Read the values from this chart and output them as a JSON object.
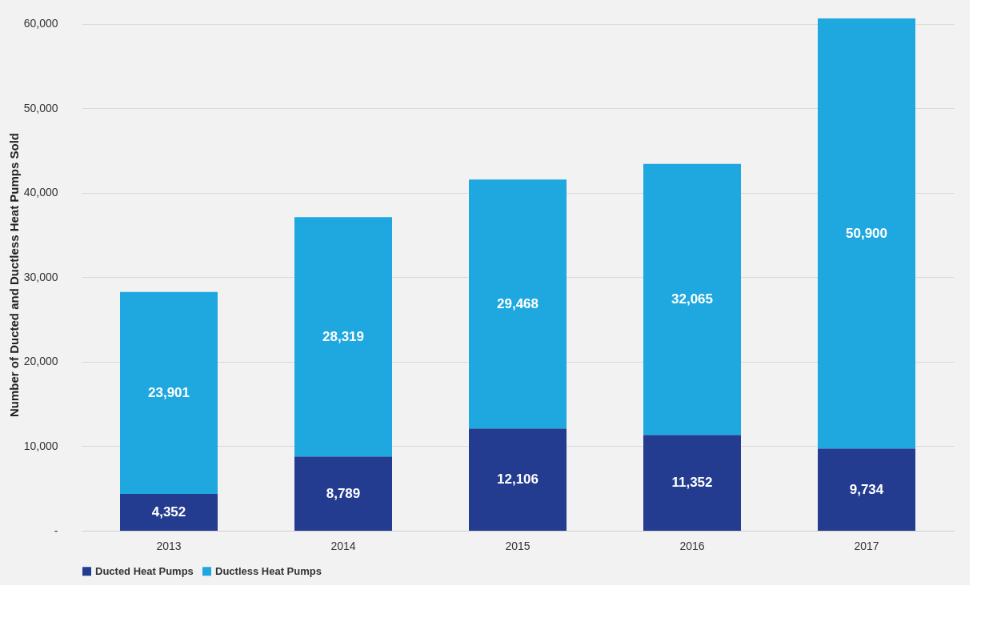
{
  "chart_data": {
    "type": "bar",
    "stacked": true,
    "ylabel": "Number of Ducted and Ductless Heat Pumps Sold",
    "categories": [
      "2013",
      "2014",
      "2015",
      "2016",
      "2017"
    ],
    "series": [
      {
        "name": "Ducted Heat Pumps",
        "color": "#233c8f",
        "values": [
          4352,
          8789,
          12106,
          11352,
          9734
        ],
        "value_labels": [
          "4,352",
          "8,789",
          "12,106",
          "11,352",
          "9,734"
        ]
      },
      {
        "name": "Ductless Heat Pumps",
        "color": "#1fa8e0",
        "values": [
          23901,
          28319,
          29468,
          32065,
          50900
        ],
        "value_labels": [
          "23,901",
          "28,319",
          "29,468",
          "32,065",
          "50,900"
        ]
      }
    ],
    "ylim": [
      0,
      60634
    ],
    "yticks": [
      {
        "value": 0,
        "label": "-"
      },
      {
        "value": 10000,
        "label": "10,000"
      },
      {
        "value": 20000,
        "label": "20,000"
      },
      {
        "value": 30000,
        "label": "30,000"
      },
      {
        "value": 40000,
        "label": "40,000"
      },
      {
        "value": 50000,
        "label": "50,000"
      },
      {
        "value": 60000,
        "label": "60,000"
      }
    ],
    "grid": "y",
    "legend": "bottom"
  }
}
